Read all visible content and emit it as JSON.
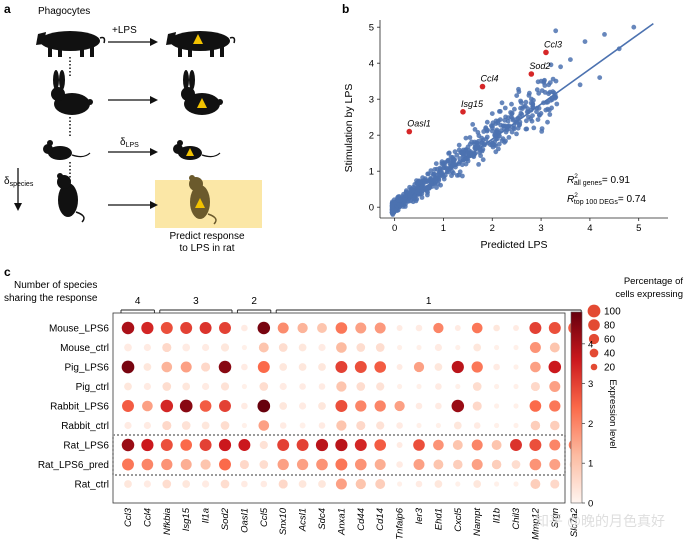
{
  "panel_a": {
    "letter": "a",
    "phagocytes_label": "Phagocytes",
    "lps_label": "+LPS",
    "delta_lps": "LPS",
    "delta_species": "species",
    "delta_symbol": "δ",
    "predict_line1": "Predict response",
    "predict_line2": "to LPS in rat",
    "colors": {
      "highlight": "#fbe7a6",
      "triangle": "#f2c200"
    }
  },
  "panel_b": {
    "letter": "b",
    "chart_data": {
      "type": "scatter",
      "xlabel": "Predicted LPS",
      "ylabel": "Stimulation by LPS",
      "xlim": [
        -0.3,
        5.6
      ],
      "ylim": [
        -0.3,
        5.2
      ],
      "xticks": [
        0,
        1,
        2,
        3,
        4,
        5
      ],
      "yticks": [
        0,
        1,
        2,
        3,
        4,
        5
      ],
      "highlighted": [
        {
          "gene": "Oasl1",
          "x": 0.3,
          "y": 2.1
        },
        {
          "gene": "Isg15",
          "x": 1.4,
          "y": 2.65
        },
        {
          "gene": "Ccl4",
          "x": 1.8,
          "y": 3.35
        },
        {
          "gene": "Sod2",
          "x": 2.8,
          "y": 3.7
        },
        {
          "gene": "Ccl3",
          "x": 3.1,
          "y": 4.3
        }
      ],
      "fit_line": {
        "x": [
          -0.1,
          5.3
        ],
        "y": [
          -0.15,
          5.1
        ]
      },
      "annotations": {
        "r2_all_label": "all genes",
        "r2_all_value": "= 0.91",
        "r2_top_label": "top 100 DEGs",
        "r2_top_value": "= 0.74"
      },
      "colors": {
        "points": "#4c72b0",
        "highlight": "#d62728",
        "line": "#4c72b0"
      }
    }
  },
  "panel_c": {
    "letter": "c",
    "chart_data": {
      "type": "dot-heatmap",
      "row_header_line1": "Number of species",
      "row_header_line2": "sharing the response",
      "rows": [
        "Mouse_LPS6",
        "Mouse_ctrl",
        "Pig_LPS6",
        "Pig_ctrl",
        "Rabbit_LPS6",
        "Rabbit_ctrl",
        "Rat_LPS6",
        "Rat_LPS6_pred",
        "Rat_ctrl"
      ],
      "columns": [
        "Ccl3",
        "Ccl4",
        "Nfkbia",
        "Isg15",
        "Il1a",
        "Sod2",
        "Oasl1",
        "Ccl5",
        "Snx10",
        "Acsl1",
        "Sdc4",
        "Anxa1",
        "Cd44",
        "Cd14",
        "Tnfaip6",
        "Ier3",
        "Ehd1",
        "Cxcl5",
        "Nampt",
        "Il1b",
        "Chil3",
        "Mmp12",
        "Srgn",
        "Slc7a2"
      ],
      "groups": [
        {
          "label": "4",
          "start": 0,
          "end": 1
        },
        {
          "label": "3",
          "start": 2,
          "end": 5
        },
        {
          "label": "2",
          "start": 6,
          "end": 7
        },
        {
          "label": "1",
          "start": 8,
          "end": 23
        }
      ],
      "expression": [
        [
          4.0,
          3.4,
          2.8,
          3.0,
          3.2,
          3.0,
          0.2,
          4.6,
          1.9,
          1.3,
          1.0,
          2.2,
          1.6,
          1.7,
          0.2,
          0.2,
          2.0,
          0.2,
          2.2,
          0.3,
          0.2,
          3.0,
          2.8,
          2.6
        ],
        [
          0.2,
          0.2,
          0.6,
          0.2,
          0.2,
          0.3,
          0.1,
          1.0,
          0.5,
          0.3,
          0.2,
          1.2,
          0.5,
          0.5,
          0.1,
          0.1,
          0.2,
          0.1,
          0.3,
          0.1,
          0.1,
          1.8,
          1.0,
          0.2
        ],
        [
          4.6,
          0.3,
          1.3,
          1.6,
          0.6,
          4.4,
          0.2,
          2.4,
          0.3,
          0.3,
          0.3,
          3.0,
          2.8,
          2.6,
          0.2,
          1.6,
          0.3,
          3.8,
          2.2,
          0.2,
          0.1,
          1.6,
          3.6,
          0.1
        ],
        [
          0.3,
          0.2,
          0.5,
          0.3,
          0.2,
          0.4,
          0.1,
          0.5,
          0.2,
          0.2,
          0.2,
          1.0,
          0.5,
          0.4,
          0.1,
          0.1,
          0.2,
          0.1,
          0.5,
          0.1,
          0.1,
          0.6,
          1.6,
          0.1
        ],
        [
          2.6,
          1.6,
          3.4,
          4.4,
          2.6,
          3.0,
          0.2,
          4.8,
          0.3,
          0.2,
          0.3,
          2.8,
          2.0,
          2.0,
          1.6,
          0.2,
          0.2,
          4.2,
          0.6,
          0.1,
          0.1,
          2.4,
          2.2,
          0.1
        ],
        [
          0.2,
          0.2,
          0.6,
          0.4,
          0.3,
          0.5,
          0.1,
          1.6,
          0.2,
          0.1,
          0.2,
          1.0,
          0.6,
          0.4,
          0.2,
          0.1,
          0.1,
          0.3,
          0.2,
          0.1,
          0.1,
          0.8,
          0.8,
          0.1
        ],
        [
          4.2,
          3.6,
          2.8,
          2.4,
          3.0,
          3.6,
          3.6,
          0.4,
          3.0,
          3.0,
          3.8,
          3.8,
          3.4,
          2.6,
          0.2,
          2.8,
          1.8,
          1.0,
          2.0,
          1.0,
          3.2,
          2.8,
          2.0,
          2.2
        ],
        [
          2.2,
          2.0,
          1.8,
          1.4,
          1.0,
          2.4,
          0.6,
          0.5,
          1.6,
          1.6,
          1.8,
          2.2,
          1.8,
          1.4,
          0.2,
          1.6,
          1.0,
          0.8,
          1.6,
          0.8,
          0.5,
          1.8,
          1.6,
          0.5
        ],
        [
          0.3,
          0.2,
          0.5,
          0.3,
          0.2,
          0.5,
          0.2,
          0.2,
          0.6,
          0.3,
          0.3,
          1.6,
          1.0,
          0.8,
          0.1,
          0.2,
          0.3,
          0.1,
          0.3,
          0.1,
          0.1,
          0.8,
          0.6,
          0.1
        ]
      ],
      "percent_expressing": [
        [
          95,
          90,
          85,
          85,
          85,
          85,
          20,
          95,
          70,
          60,
          55,
          80,
          70,
          70,
          15,
          20,
          60,
          15,
          65,
          20,
          15,
          85,
          85,
          85
        ],
        [
          30,
          25,
          45,
          30,
          25,
          35,
          10,
          55,
          40,
          30,
          25,
          65,
          40,
          40,
          10,
          10,
          25,
          10,
          30,
          10,
          10,
          70,
          55,
          20
        ],
        [
          98,
          30,
          65,
          70,
          45,
          95,
          20,
          85,
          30,
          30,
          30,
          85,
          85,
          80,
          15,
          60,
          30,
          90,
          75,
          20,
          10,
          65,
          95,
          10
        ],
        [
          30,
          25,
          40,
          30,
          25,
          35,
          10,
          40,
          25,
          20,
          20,
          60,
          40,
          35,
          10,
          10,
          20,
          10,
          40,
          10,
          10,
          45,
          70,
          10
        ],
        [
          85,
          65,
          95,
          98,
          80,
          85,
          20,
          98,
          30,
          25,
          30,
          85,
          75,
          75,
          60,
          20,
          20,
          95,
          45,
          10,
          10,
          80,
          75,
          10
        ],
        [
          25,
          25,
          45,
          40,
          30,
          40,
          10,
          65,
          20,
          15,
          20,
          60,
          45,
          35,
          20,
          10,
          10,
          30,
          20,
          10,
          10,
          50,
          50,
          10
        ],
        [
          95,
          90,
          85,
          80,
          85,
          90,
          85,
          35,
          85,
          85,
          90,
          90,
          85,
          80,
          15,
          80,
          65,
          55,
          70,
          55,
          85,
          85,
          70,
          70
        ],
        [
          85,
          80,
          75,
          70,
          60,
          85,
          45,
          40,
          75,
          75,
          80,
          85,
          80,
          70,
          20,
          70,
          55,
          50,
          70,
          50,
          40,
          80,
          70,
          45
        ],
        [
          30,
          25,
          40,
          30,
          25,
          40,
          20,
          20,
          45,
          30,
          30,
          70,
          60,
          55,
          10,
          20,
          30,
          10,
          30,
          10,
          10,
          55,
          45,
          10
        ]
      ],
      "size_legend": {
        "title_line1": "Percentage of",
        "title_line2": "cells expressing",
        "values": [
          100,
          80,
          60,
          40,
          20
        ]
      },
      "colorbar": {
        "label": "Expression level",
        "min": 0,
        "max": 4.8,
        "ticks": [
          0,
          1,
          2,
          3,
          4
        ]
      },
      "colors": {
        "low": "#fff5f0",
        "mid": "#ef8a62",
        "high": "#67000d"
      }
    }
  },
  "watermark": "知乎 @晚的月色真好"
}
